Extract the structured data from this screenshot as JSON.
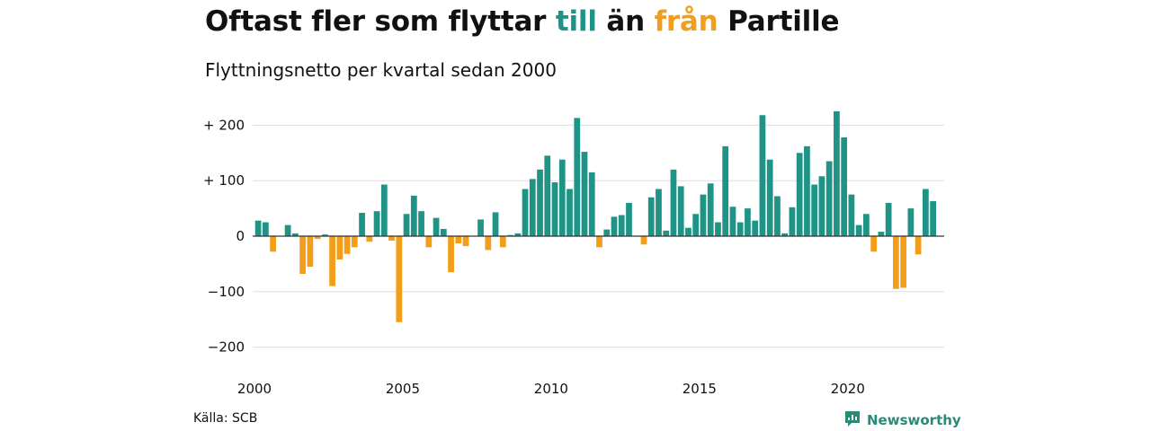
{
  "title": {
    "part1": "Oftast fler som flyttar ",
    "part2": "till",
    "part3": " än ",
    "part4": "från",
    "part5": " Partille"
  },
  "subtitle": "Flyttningsnetto per kvartal sedan 2000",
  "source": "Källa: SCB",
  "brand": {
    "name": "Newsworthy",
    "icon": "newsworthy-logo-icon"
  },
  "colors": {
    "positive": "#1f9486",
    "negative": "#f29e1a",
    "grid": "#dddddd",
    "axis": "#333333"
  },
  "chart_data": {
    "type": "bar",
    "title": "Oftast fler som flyttar till än från Partille",
    "subtitle": "Flyttningsnetto per kvartal sedan 2000",
    "x_start": 2000,
    "quarters_per_year": 4,
    "xlim": [
      2000,
      2023.25
    ],
    "ylim": [
      -200,
      225
    ],
    "ytick_values": [
      200,
      100,
      0,
      -100,
      -200
    ],
    "ytick_labels": [
      "+ 200",
      "+ 100",
      "0",
      "−100",
      "−200"
    ],
    "xtick_values": [
      2000,
      2005,
      2010,
      2015,
      2020
    ],
    "xtick_labels": [
      "2000",
      "2005",
      "2010",
      "2015",
      "2020"
    ],
    "grid": true,
    "values": [
      28,
      25,
      -28,
      0,
      20,
      5,
      -68,
      -55,
      -5,
      3,
      -90,
      -42,
      -32,
      -20,
      42,
      -10,
      45,
      93,
      -8,
      -155,
      40,
      73,
      45,
      -20,
      33,
      13,
      -65,
      -13,
      -18,
      0,
      30,
      -25,
      43,
      -20,
      2,
      5,
      85,
      103,
      120,
      145,
      97,
      138,
      85,
      213,
      152,
      115,
      -20,
      12,
      35,
      38,
      60,
      0,
      -15,
      70,
      85,
      10,
      120,
      90,
      15,
      40,
      75,
      95,
      25,
      162,
      53,
      25,
      50,
      28,
      218,
      138,
      72,
      5,
      52,
      150,
      162,
      93,
      108,
      135,
      225,
      178,
      75,
      20,
      40,
      -28,
      8,
      60,
      -95,
      -93,
      50,
      -33,
      85,
      63
    ]
  }
}
